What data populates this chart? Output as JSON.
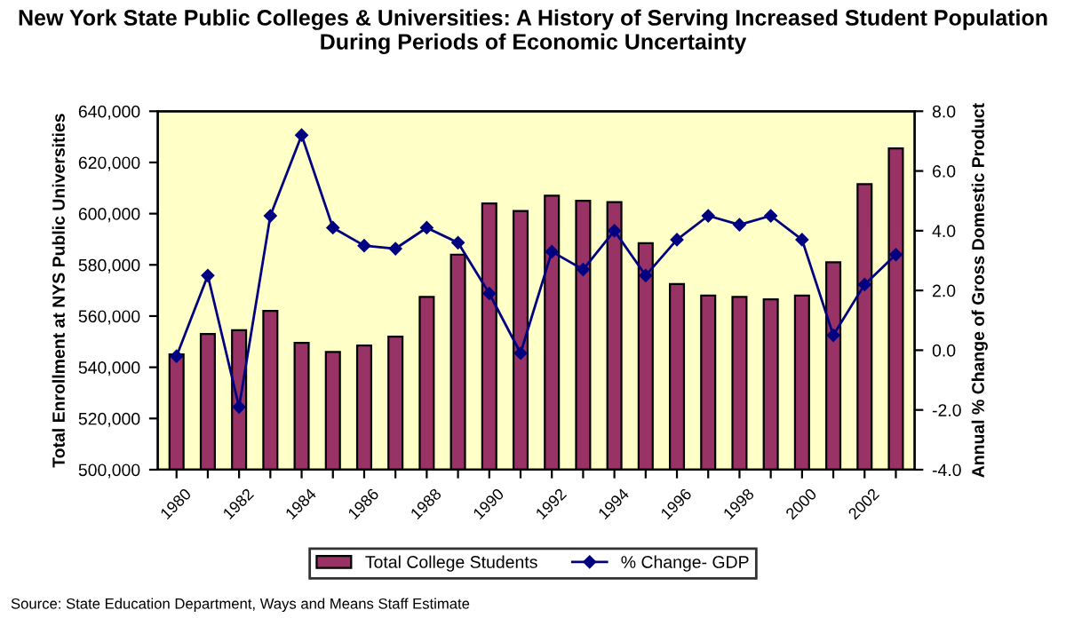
{
  "chart_data": {
    "type": "bar",
    "title": "New York State Public Colleges & Universities: A History of Serving Increased Student Population During Periods of Economic Uncertainty",
    "categories": [
      "1980",
      null,
      "1982",
      null,
      "1984",
      null,
      "1986",
      null,
      "1988",
      null,
      "1990",
      null,
      "1992",
      null,
      "1994",
      null,
      "1996",
      null,
      "1998",
      null,
      "2000",
      null,
      "2002",
      null
    ],
    "series": [
      {
        "name": "Total College Students",
        "color": "#993366",
        "values": [
          545000,
          553000,
          554500,
          562000,
          549500,
          546000,
          548500,
          552000,
          567500,
          584000,
          604000,
          601000,
          607000,
          605000,
          604500,
          588500,
          572500,
          568000,
          567500,
          566500,
          568000,
          581000,
          611500,
          625500
        ]
      },
      {
        "name": "% Change- GDP",
        "type": "line",
        "axis": "y2",
        "color": "#000080",
        "marker": "diamond",
        "values": [
          -0.2,
          2.5,
          -1.9,
          4.5,
          7.2,
          4.1,
          3.5,
          3.4,
          4.1,
          3.6,
          1.9,
          -0.1,
          3.3,
          2.7,
          4.0,
          2.5,
          3.7,
          4.5,
          4.2,
          4.5,
          3.7,
          0.5,
          2.2,
          3.2
        ]
      }
    ],
    "ylabel": "Total Enrollment at NYS Public Universities",
    "y2label": "Annual % Change of Gross Domestic Product",
    "ylim": [
      500000,
      640000
    ],
    "yticks": [
      {
        "value": 500000,
        "label": "500,000"
      },
      {
        "value": 520000,
        "label": "520,000"
      },
      {
        "value": 540000,
        "label": "540,000"
      },
      {
        "value": 560000,
        "label": "560,000"
      },
      {
        "value": 580000,
        "label": "580,000"
      },
      {
        "value": 600000,
        "label": "600,000"
      },
      {
        "value": 620000,
        "label": "620,000"
      },
      {
        "value": 640000,
        "label": "640,000"
      }
    ],
    "y2lim": [
      -4,
      8
    ],
    "y2ticks": [
      {
        "value": -4,
        "label": "-4.0"
      },
      {
        "value": -2,
        "label": "-2.0"
      },
      {
        "value": 0,
        "label": "0.0"
      },
      {
        "value": 2,
        "label": "2.0"
      },
      {
        "value": 4,
        "label": "4.0"
      },
      {
        "value": 6,
        "label": "6.0"
      },
      {
        "value": 8,
        "label": "8.0"
      }
    ],
    "legend": "bottom",
    "grid": false,
    "annotations": [
      "Source: State Education Department, Ways and Means Staff Estimate"
    ]
  }
}
